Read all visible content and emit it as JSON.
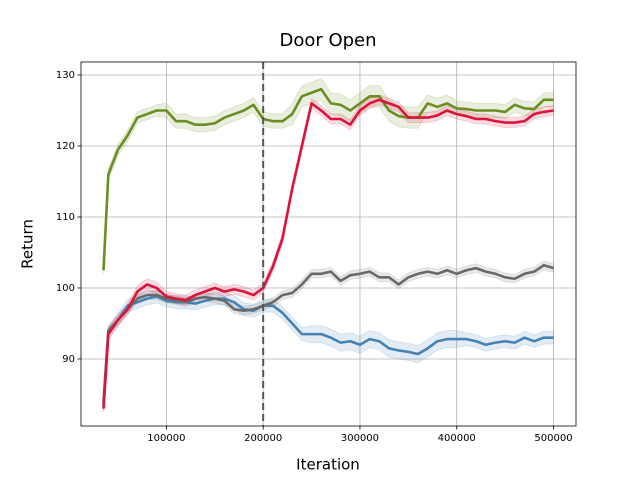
{
  "chart_data": {
    "type": "line",
    "title": "Door Open",
    "x_label": "Iteration",
    "y_label": "Return",
    "x": [
      35000,
      40000,
      50000,
      60000,
      70000,
      80000,
      90000,
      100000,
      110000,
      120000,
      130000,
      140000,
      150000,
      160000,
      170000,
      180000,
      190000,
      200000,
      210000,
      220000,
      230000,
      240000,
      250000,
      260000,
      270000,
      280000,
      290000,
      300000,
      310000,
      320000,
      330000,
      340000,
      350000,
      360000,
      370000,
      380000,
      390000,
      400000,
      410000,
      420000,
      430000,
      440000,
      450000,
      460000,
      470000,
      480000,
      490000,
      500000
    ],
    "series": [
      {
        "color": "#6b8e23",
        "values": [
          102.5,
          116,
          119.5,
          121.5,
          124,
          124.5,
          125,
          125,
          123.5,
          123.5,
          123,
          123,
          123.2,
          124,
          124.5,
          125,
          125.8,
          123.8,
          123.5,
          123.5,
          124.5,
          127,
          127.5,
          128,
          126,
          125.8,
          125,
          126,
          127,
          127,
          125,
          124.2,
          124,
          124,
          126,
          125.5,
          126,
          125.3,
          125.2,
          125,
          125,
          125,
          124.8,
          125.8,
          125.3,
          125.2,
          126.5,
          126.5
        ],
        "errors": [
          0.5,
          0.8,
          0.8,
          0.8,
          0.8,
          0.8,
          0.8,
          1,
          1,
          1,
          1,
          1,
          1,
          1,
          1,
          1,
          1,
          1,
          1,
          1,
          1.5,
          1.5,
          1.5,
          1.5,
          1.5,
          1.5,
          1.5,
          1.5,
          1.5,
          1.5,
          1.5,
          1.5,
          1.5,
          1.5,
          1.2,
          1.2,
          1.2,
          1,
          1,
          1,
          1,
          1,
          1,
          1,
          1,
          1,
          1,
          1
        ]
      },
      {
        "color": "#4682b4",
        "values": [
          83.5,
          93.8,
          95.5,
          97.5,
          98,
          98.5,
          98.8,
          98.2,
          98,
          98,
          97.8,
          98.2,
          98.5,
          98.5,
          98,
          97,
          96.8,
          97.5,
          97.5,
          96.5,
          95,
          93.5,
          93.5,
          93.5,
          93,
          92.3,
          92.5,
          92,
          92.8,
          92.5,
          91.5,
          91.2,
          91,
          90.7,
          91.5,
          92.5,
          92.8,
          92.8,
          92.8,
          92.5,
          92,
          92.3,
          92.5,
          92.3,
          93,
          92.5,
          93,
          93
        ],
        "errors": [
          0.8,
          0.9,
          0.9,
          0.9,
          0.9,
          0.9,
          0.9,
          0.9,
          0.9,
          0.9,
          0.9,
          0.9,
          0.9,
          0.9,
          0.9,
          0.9,
          0.9,
          0.9,
          0.9,
          0.9,
          0.9,
          0.9,
          1.2,
          1.2,
          1.2,
          1.2,
          1.2,
          1.2,
          1.2,
          1.2,
          1.2,
          1.2,
          1.2,
          1.2,
          1.2,
          1.2,
          1.2,
          1.2,
          0.9,
          0.9,
          0.9,
          0.9,
          0.9,
          0.9,
          0.9,
          0.9,
          0.9,
          0.9
        ]
      },
      {
        "color": "#696969",
        "values": [
          84,
          94,
          95.5,
          97,
          98.5,
          99,
          99,
          98.5,
          98.3,
          98,
          98.5,
          98.7,
          98.5,
          98.2,
          97,
          96.8,
          97,
          97.5,
          98,
          99,
          99.3,
          100.5,
          102,
          102,
          102.3,
          101,
          101.8,
          102,
          102.3,
          101.5,
          101.5,
          100.5,
          101.5,
          102,
          102.3,
          102,
          102.5,
          102,
          102.5,
          102.8,
          102.3,
          102,
          101.5,
          101.3,
          102,
          102.3,
          103.2,
          102.8
        ],
        "errors": [
          0.5,
          0.6,
          0.6,
          0.6,
          0.6,
          0.6,
          0.6,
          0.6,
          0.6,
          0.6,
          0.6,
          0.6,
          0.6,
          0.6,
          0.6,
          0.6,
          0.6,
          0.6,
          0.6,
          0.6,
          0.6,
          0.6,
          0.6,
          0.6,
          0.6,
          0.6,
          0.6,
          0.6,
          0.6,
          0.6,
          0.6,
          0.6,
          0.6,
          0.6,
          0.6,
          0.6,
          0.6,
          0.6,
          0.6,
          0.6,
          0.6,
          0.6,
          0.6,
          0.6,
          0.6,
          0.6,
          0.6,
          0.6
        ]
      },
      {
        "color": "#dc143c",
        "values": [
          83,
          93.5,
          95.5,
          97,
          99.5,
          100.5,
          100,
          98.8,
          98.5,
          98.3,
          99,
          99.5,
          100,
          99.5,
          99.8,
          99.5,
          99,
          100,
          103,
          107,
          114,
          120,
          126,
          125,
          123.8,
          123.8,
          123,
          125,
          126,
          126.5,
          126,
          125.5,
          124,
          124,
          124,
          124.3,
          125,
          124.5,
          124.2,
          123.8,
          123.8,
          123.5,
          123.3,
          123.3,
          123.5,
          124.5,
          124.8,
          125
        ],
        "errors": [
          0.5,
          0.8,
          0.8,
          0.8,
          0.8,
          0.8,
          0.8,
          0.7,
          0.7,
          0.7,
          0.7,
          0.7,
          0.7,
          0.7,
          0.7,
          0.7,
          0.7,
          0.7,
          0.7,
          0.7,
          0.7,
          0.7,
          0.7,
          0.7,
          0.7,
          0.7,
          0.7,
          0.7,
          0.7,
          0.7,
          0.7,
          0.7,
          0.7,
          0.7,
          0.7,
          0.7,
          0.7,
          0.7,
          0.7,
          0.7,
          0.7,
          0.7,
          0.7,
          0.7,
          0.7,
          0.7,
          0.7,
          0.7
        ]
      }
    ],
    "vline": 200000,
    "xlim": [
      11750,
      523250
    ],
    "ylim": [
      80.56,
      131.83
    ],
    "xticks": [
      100000,
      200000,
      300000,
      400000,
      500000
    ],
    "yticks": [
      90,
      100,
      110,
      120,
      130
    ],
    "grid": true
  }
}
